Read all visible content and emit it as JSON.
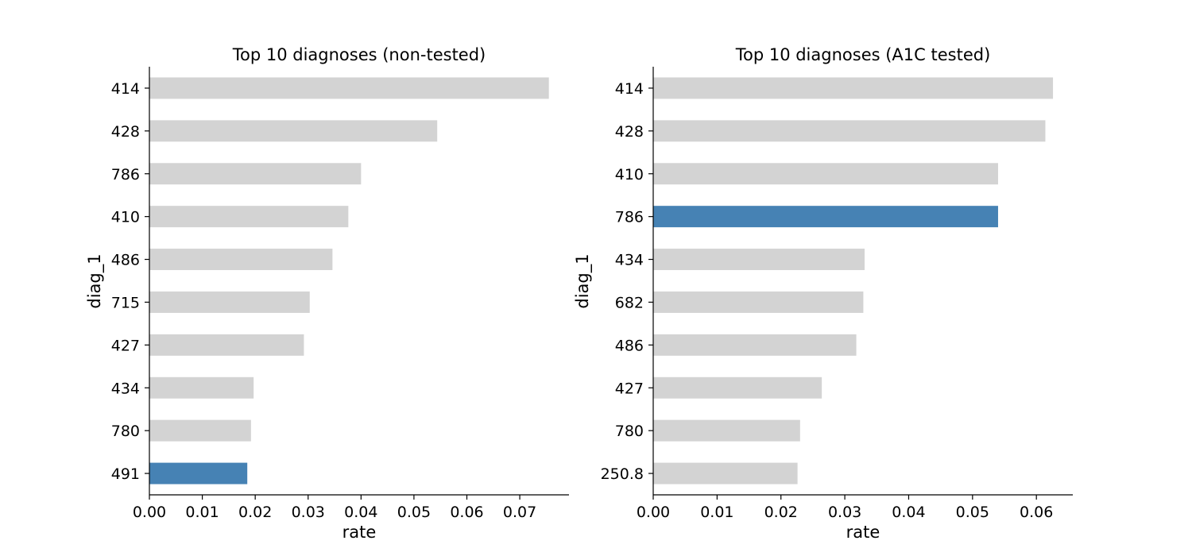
{
  "chart_data": [
    {
      "type": "bar",
      "orientation": "horizontal",
      "title": "Top 10 diagnoses (non-tested)",
      "xlabel": "rate",
      "ylabel": "diag_1",
      "categories": [
        "414",
        "428",
        "786",
        "410",
        "486",
        "715",
        "427",
        "434",
        "780",
        "491"
      ],
      "values": [
        0.0755,
        0.0544,
        0.04,
        0.0376,
        0.0346,
        0.0303,
        0.0292,
        0.0197,
        0.0192,
        0.0185
      ],
      "highlight": "491",
      "xlim": [
        0,
        0.0793
      ],
      "xticks": [
        0.0,
        0.01,
        0.02,
        0.03,
        0.04,
        0.05,
        0.06,
        0.07
      ],
      "xtick_labels": [
        "0.00",
        "0.01",
        "0.02",
        "0.03",
        "0.04",
        "0.05",
        "0.06",
        "0.07"
      ],
      "grid": false,
      "colors": {
        "default": "#d3d3d3",
        "highlight": "#4682b4"
      }
    },
    {
      "type": "bar",
      "orientation": "horizontal",
      "title": "Top 10 diagnoses (A1C tested)",
      "xlabel": "rate",
      "ylabel": "diag_1",
      "categories": [
        "414",
        "428",
        "410",
        "786",
        "434",
        "682",
        "486",
        "427",
        "780",
        "250.8"
      ],
      "values": [
        0.0626,
        0.0614,
        0.054,
        0.054,
        0.0331,
        0.0329,
        0.0318,
        0.0264,
        0.023,
        0.0226
      ],
      "highlight": "786",
      "xlim": [
        0,
        0.0657
      ],
      "xticks": [
        0.0,
        0.01,
        0.02,
        0.03,
        0.04,
        0.05,
        0.06
      ],
      "xtick_labels": [
        "0.00",
        "0.01",
        "0.02",
        "0.03",
        "0.04",
        "0.05",
        "0.06"
      ],
      "grid": false,
      "colors": {
        "default": "#d3d3d3",
        "highlight": "#4682b4"
      }
    }
  ]
}
